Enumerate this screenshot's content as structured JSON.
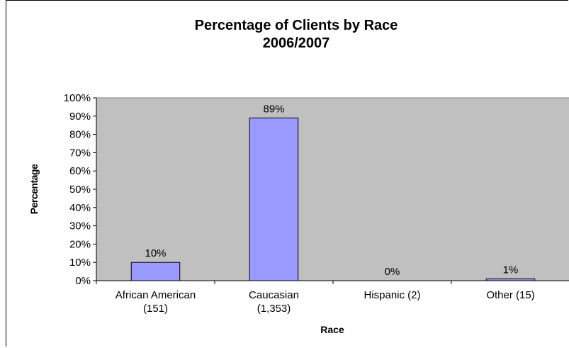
{
  "chart_data": {
    "type": "bar",
    "title_line1": "Percentage of Clients by Race",
    "title_line2": "2006/2007",
    "xlabel": "Race",
    "ylabel": "Percentage",
    "categories": [
      [
        "African American",
        "(151)"
      ],
      [
        "Caucasian",
        "(1,353)"
      ],
      [
        "Hispanic (2)"
      ],
      [
        "Other (15)"
      ]
    ],
    "values": [
      10,
      89,
      0,
      1
    ],
    "data_labels": [
      "10%",
      "89%",
      "0%",
      "1%"
    ],
    "ylim": [
      0,
      100
    ],
    "yticks": [
      "0%",
      "10%",
      "20%",
      "30%",
      "40%",
      "50%",
      "60%",
      "70%",
      "80%",
      "90%",
      "100%"
    ],
    "grid": false,
    "legend": "none",
    "colors": {
      "bar_fill": "#9999ff",
      "bar_stroke": "#000000",
      "plot_bg": "#c0c0c0",
      "frame_bg": "#ffffff"
    }
  }
}
